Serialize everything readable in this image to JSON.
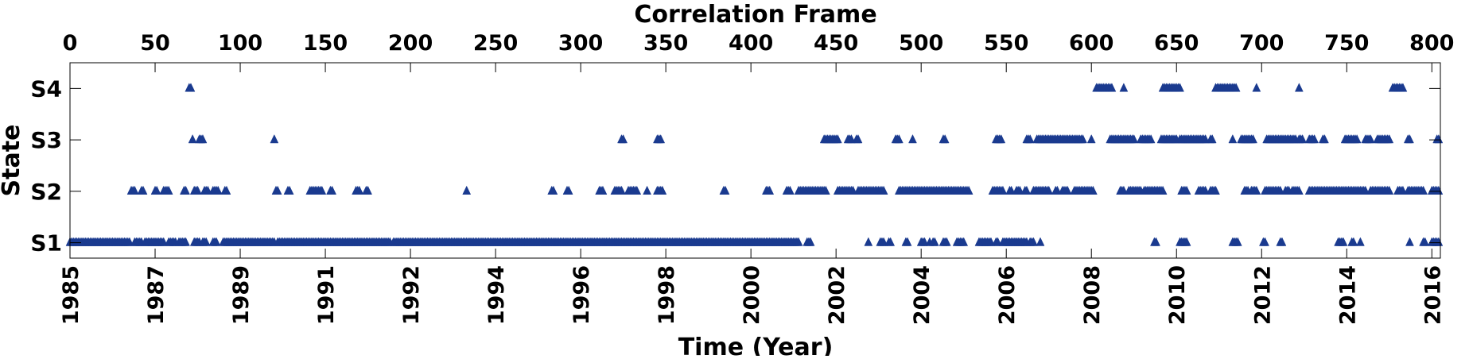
{
  "chart_data": {
    "type": "scatter",
    "marker": "triangle",
    "title": "",
    "xlabel": "Time (Year)",
    "x2label": "Correlation Frame",
    "ylabel": "State",
    "xlim": [
      0,
      805
    ],
    "ylim": [
      0.7,
      4.5
    ],
    "y_categories": [
      "S1",
      "S2",
      "S3",
      "S4"
    ],
    "y_tick_values": [
      1,
      2,
      3,
      4
    ],
    "x_tick_labels": [
      "1985",
      "1987",
      "1989",
      "1991",
      "1992",
      "1994",
      "1996",
      "1998",
      "2000",
      "2002",
      "2004",
      "2006",
      "2008",
      "2010",
      "2012",
      "2014",
      "2016"
    ],
    "x_tick_frames": [
      0,
      50,
      100,
      150,
      200,
      250,
      300,
      350,
      400,
      450,
      500,
      550,
      600,
      650,
      700,
      750,
      800
    ],
    "x2_tick_labels": [
      "0",
      "50",
      "100",
      "150",
      "200",
      "250",
      "300",
      "350",
      "400",
      "450",
      "500",
      "550",
      "600",
      "650",
      "700",
      "750",
      "800"
    ],
    "x2_tick_values": [
      0,
      50,
      100,
      150,
      200,
      250,
      300,
      350,
      400,
      450,
      500,
      550,
      600,
      650,
      700,
      750,
      800
    ],
    "colors": {
      "marker": "#1a3a8f",
      "axis": "#000000",
      "background": "#ffffff"
    },
    "series": [
      {
        "values": [
          {
            "state": 4,
            "frames": [
              [
                70,
                71
              ],
              [
                603,
                612
              ],
              [
                642,
                652
              ],
              [
                673,
                685
              ],
              [
                777,
                783
              ],
              [
                619,
                619
              ],
              [
                697,
                697
              ],
              [
                722,
                722
              ]
            ]
          },
          {
            "state": 3,
            "frames": [
              [
                72,
                72
              ],
              [
                76,
                78
              ],
              [
                120,
                120
              ],
              [
                324,
                325
              ],
              [
                345,
                347
              ],
              [
                443,
                451
              ],
              [
                457,
                459
              ],
              [
                462,
                463
              ],
              [
                485,
                487
              ],
              [
                495,
                495
              ],
              [
                513,
                514
              ],
              [
                544,
                547
              ],
              [
                562,
                564
              ],
              [
                568,
                595
              ],
              [
                600,
                600
              ],
              [
                611,
                625
              ],
              [
                629,
                635
              ],
              [
                641,
                650
              ],
              [
                652,
                662
              ],
              [
                663,
                667
              ],
              [
                670,
                671
              ],
              [
                683,
                683
              ],
              [
                688,
                695
              ],
              [
                703,
                720
              ],
              [
                722,
                724
              ],
              [
                728,
                731
              ],
              [
                736,
                737
              ],
              [
                749,
                756
              ],
              [
                761,
                764
              ],
              [
                768,
                775
              ],
              [
                786,
                787
              ],
              [
                803,
                804
              ]
            ]
          },
          {
            "state": 2,
            "frames": [
              [
                36,
                38
              ],
              [
                42,
                43
              ],
              [
                50,
                51
              ],
              [
                55,
                58
              ],
              [
                67,
                68
              ],
              [
                73,
                75
              ],
              [
                79,
                81
              ],
              [
                84,
                87
              ],
              [
                91,
                92
              ],
              [
                121,
                122
              ],
              [
                128,
                129
              ],
              [
                141,
                148
              ],
              [
                153,
                154
              ],
              [
                168,
                170
              ],
              [
                174,
                175
              ],
              [
                233,
                233
              ],
              [
                283,
                284
              ],
              [
                292,
                293
              ],
              [
                311,
                313
              ],
              [
                320,
                324
              ],
              [
                328,
                333
              ],
              [
                339,
                339
              ],
              [
                345,
                348
              ],
              [
                384,
                385
              ],
              [
                409,
                411
              ],
              [
                421,
                423
              ],
              [
                428,
                444
              ],
              [
                451,
                460
              ],
              [
                463,
                478
              ],
              [
                487,
                528
              ],
              [
                542,
                548
              ],
              [
                552,
                553
              ],
              [
                556,
                558
              ],
              [
                561,
                562
              ],
              [
                566,
                575
              ],
              [
                579,
                580
              ],
              [
                583,
                586
              ],
              [
                590,
                601
              ],
              [
                617,
                619
              ],
              [
                622,
                629
              ],
              [
                631,
                642
              ],
              [
                653,
                656
              ],
              [
                663,
                667
              ],
              [
                670,
                673
              ],
              [
                690,
                692
              ],
              [
                694,
                697
              ],
              [
                702,
                711
              ],
              [
                714,
                716
              ],
              [
                718,
                722
              ],
              [
                728,
                761
              ],
              [
                764,
                775
              ],
              [
                780,
                783
              ],
              [
                786,
                795
              ],
              [
                800,
                804
              ]
            ]
          },
          {
            "state": 1,
            "frames": [
              [
                0,
                35
              ],
              [
                38,
                42
              ],
              [
                44,
                55
              ],
              [
                58,
                62
              ],
              [
                64,
                68
              ],
              [
                73,
                76
              ],
              [
                78,
                80
              ],
              [
                84,
                86
              ],
              [
                90,
                120
              ],
              [
                122,
                188
              ],
              [
                190,
                428
              ],
              [
                433,
                435
              ],
              [
                469,
                469
              ],
              [
                476,
                478
              ],
              [
                481,
                482
              ],
              [
                491,
                492
              ],
              [
                500,
                502
              ],
              [
                505,
                505
              ],
              [
                507,
                508
              ],
              [
                513,
                515
              ],
              [
                521,
                525
              ],
              [
                534,
                541
              ],
              [
                544,
                545
              ],
              [
                548,
                560
              ],
              [
                561,
                562
              ],
              [
                564,
                566
              ],
              [
                570,
                570
              ],
              [
                637,
                638
              ],
              [
                652,
                656
              ],
              [
                683,
                686
              ],
              [
                701,
                702
              ],
              [
                711,
                712
              ],
              [
                745,
                748
              ],
              [
                753,
                754
              ],
              [
                758,
                758
              ],
              [
                787,
                787
              ],
              [
                795,
                796
              ],
              [
                800,
                804
              ]
            ]
          }
        ]
      }
    ]
  }
}
